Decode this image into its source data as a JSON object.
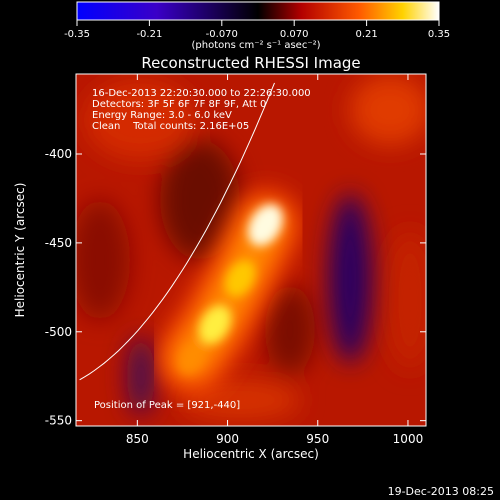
{
  "chart_data": {
    "type": "heatmap",
    "title": "Reconstructed RHESSI Image",
    "xlabel": "Heliocentric X (arcsec)",
    "ylabel": "Heliocentric Y (arcsec)",
    "xlim": [
      816,
      1010
    ],
    "ylim": [
      -553,
      -355
    ],
    "x_ticks": [
      850,
      900,
      950,
      1000
    ],
    "y_ticks": [
      -550,
      -500,
      -450,
      -400
    ],
    "colorbar": {
      "label": "(photons cm⁻² s⁻¹ asec⁻²)",
      "range": [
        -0.35,
        0.35
      ],
      "ticks": [
        "-0.35",
        "-0.21",
        "-0.070",
        "0.070",
        "0.21",
        "0.35"
      ]
    },
    "annotations": [
      "16-Dec-2013 22:20:30.000 to 22:26:30.000",
      "Detectors: 3F 5F 6F 7F 8F 9F, Att 0",
      "Energy Range: 3.0 - 6.0 keV",
      "Clean    Total counts: 2.16E+05"
    ],
    "peak_label": "Position of Peak = [921,-440]",
    "peak": {
      "x": 921,
      "y": -440,
      "value": 0.35
    },
    "sources": [
      {
        "x": 921,
        "y": -440,
        "value": 0.35
      },
      {
        "x": 907,
        "y": -470,
        "value": 0.27
      },
      {
        "x": 893,
        "y": -496,
        "value": 0.31
      },
      {
        "x": 880,
        "y": -515,
        "value": 0.18
      }
    ],
    "negative_regions": [
      {
        "x": 968,
        "y": -470,
        "value": -0.1
      },
      {
        "x": 852,
        "y": -525,
        "value": -0.05
      }
    ],
    "limb": [
      [
        818,
        -527
      ],
      [
        872,
        -470
      ],
      [
        926,
        -360
      ]
    ]
  },
  "footer": "19-Dec-2013 08:25"
}
